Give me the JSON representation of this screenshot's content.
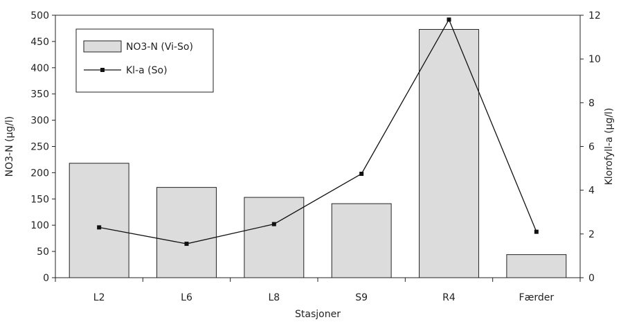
{
  "chart_data": {
    "type": "bar",
    "categories": [
      "L2",
      "L6",
      "L8",
      "S9",
      "R4",
      "Færder"
    ],
    "series": [
      {
        "name": "NO3-N (Vi-So)",
        "type": "bar",
        "axis": "left",
        "values": [
          218,
          172,
          153,
          141,
          473,
          44
        ]
      },
      {
        "name": "Kl-a (So)",
        "type": "line",
        "axis": "right",
        "values": [
          2.3,
          1.55,
          2.45,
          4.75,
          11.8,
          2.1
        ]
      }
    ],
    "xlabel": "Stasjoner",
    "ylabel": "NO3-N (µg/l)",
    "y2label": "Klorofyll-a (µg/l)",
    "ylim": [
      0,
      500
    ],
    "y2lim": [
      0,
      12
    ],
    "yticks": [
      "0",
      "50",
      "100",
      "150",
      "200",
      "250",
      "300",
      "350",
      "400",
      "450",
      "500"
    ],
    "y2ticks": [
      "0",
      "2",
      "4",
      "6",
      "8",
      "10",
      "12"
    ],
    "legend_position": "top-left",
    "grid": false,
    "colors": {
      "bar_fill": "#dcdcdc",
      "bar_stroke": "#222222",
      "line": "#111111"
    }
  }
}
